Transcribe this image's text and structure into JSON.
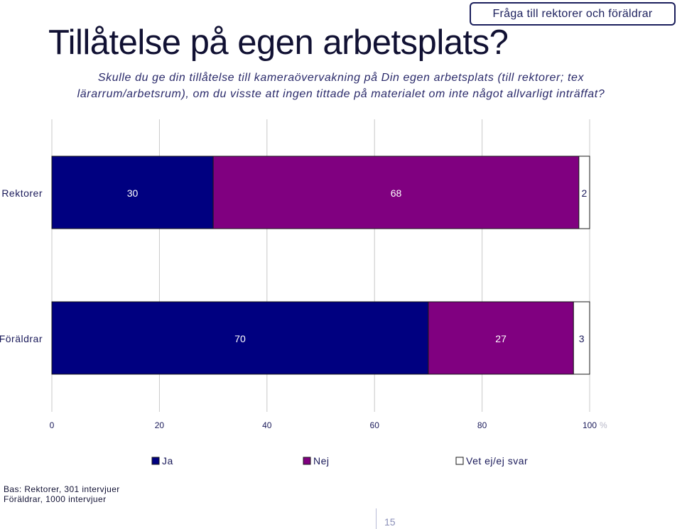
{
  "header": {
    "badge": "Fråga till rektorer och föräldrar",
    "title": "Tillåtelse på egen arbetsplats?",
    "question_line1": "Skulle du ge din tillåtelse till kameraövervakning på Din egen arbetsplats (till rektorer; tex",
    "question_line2": "lärarrum/arbetsrum), om du visste att ingen tittade på materialet om inte något allvarligt inträffat?"
  },
  "chart_data": {
    "type": "bar",
    "orientation": "horizontal",
    "stacked": true,
    "categories": [
      "Rektorer",
      "Föräldrar"
    ],
    "series": [
      {
        "name": "Ja",
        "values": [
          30,
          70
        ],
        "color": "#000080"
      },
      {
        "name": "Nej",
        "values": [
          68,
          27
        ],
        "color": "#800080"
      },
      {
        "name": "Vet ej/ej svar",
        "values": [
          2,
          3
        ],
        "color": "#ffffff"
      }
    ],
    "xlim": [
      0,
      100
    ],
    "xticks": [
      "0",
      "20",
      "40",
      "60",
      "80",
      "100"
    ],
    "xunit": "%",
    "grid": true,
    "legend_position": "bottom"
  },
  "footer": {
    "base_line1": "Bas: Rektorer, 301 intervjuer",
    "base_line2": "Föräldrar, 1000 intervjuer",
    "page_number": "15"
  }
}
